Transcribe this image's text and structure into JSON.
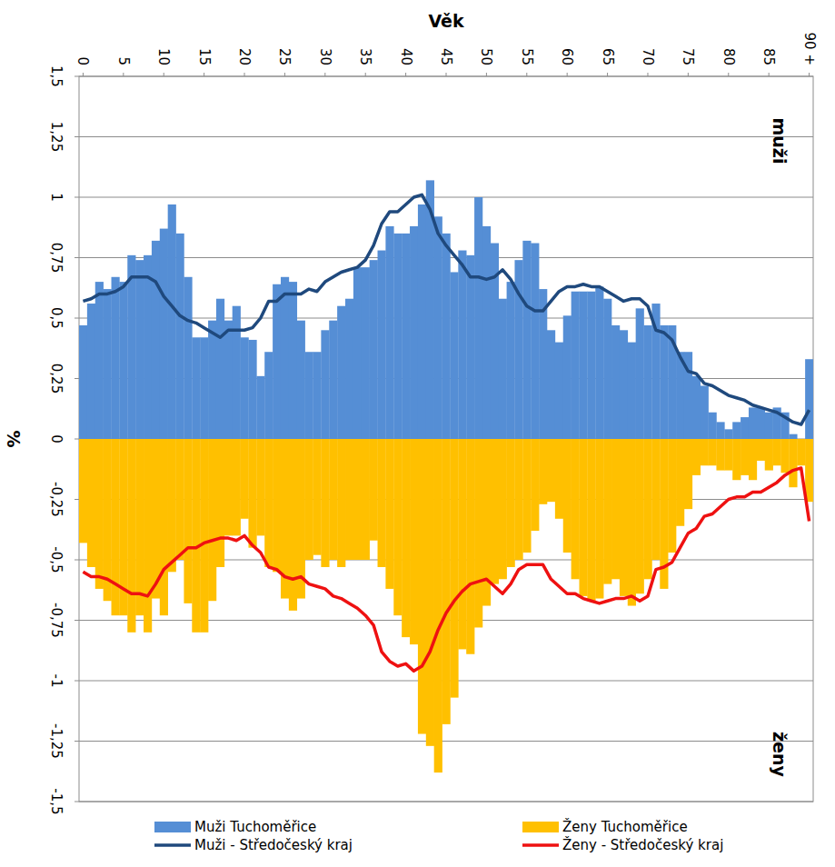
{
  "chart_data": {
    "type": "bar",
    "x_label": "Věk",
    "y_label": "%",
    "annotations": [
      "muži",
      "ženy"
    ],
    "categories": [
      "0",
      null,
      null,
      null,
      null,
      "5",
      null,
      null,
      null,
      null,
      "10",
      null,
      null,
      null,
      null,
      "15",
      null,
      null,
      null,
      null,
      "20",
      null,
      null,
      null,
      null,
      "25",
      null,
      null,
      null,
      null,
      "30",
      null,
      null,
      null,
      null,
      "35",
      null,
      null,
      null,
      null,
      "40",
      null,
      null,
      null,
      null,
      "45",
      null,
      null,
      null,
      null,
      "50",
      null,
      null,
      null,
      null,
      "55",
      null,
      null,
      null,
      null,
      "60",
      null,
      null,
      null,
      null,
      "65",
      null,
      null,
      null,
      null,
      "70",
      null,
      null,
      null,
      null,
      "75",
      null,
      null,
      null,
      null,
      "80",
      null,
      null,
      null,
      null,
      "85",
      null,
      null,
      null,
      null,
      "90 +"
    ],
    "ylim": [
      -1.5,
      1.5
    ],
    "yticks": [
      {
        "value": -1.5,
        "label": "-1,5"
      },
      {
        "value": -1.25,
        "label": "-1,25"
      },
      -1,
      {
        "value": -0.75,
        "label": "-0,75"
      },
      {
        "value": -0.5,
        "label": "-0,5"
      },
      {
        "value": -0.25,
        "label": "-0,25"
      },
      0,
      {
        "value": 0.25,
        "label": "0,25"
      },
      {
        "value": 0.5,
        "label": "0,5"
      },
      {
        "value": 0.75,
        "label": "0,75"
      },
      1,
      {
        "value": 1.25,
        "label": "1,25"
      },
      {
        "value": 1.5,
        "label": "1,5"
      }
    ],
    "grid": true,
    "legend": "bottom",
    "series": [
      {
        "name": "Muži Tuchoměřice",
        "type": "bar",
        "color": "#558ed5",
        "values": [
          0.47,
          0.56,
          0.65,
          0.62,
          0.67,
          0.65,
          0.76,
          0.74,
          0.76,
          0.82,
          0.87,
          0.97,
          0.85,
          0.67,
          0.42,
          0.42,
          0.49,
          0.58,
          0.49,
          0.55,
          0.42,
          0.41,
          0.26,
          0.36,
          0.64,
          0.67,
          0.65,
          0.49,
          0.36,
          0.36,
          0.45,
          0.49,
          0.55,
          0.58,
          0.71,
          0.71,
          0.74,
          0.78,
          0.88,
          0.85,
          0.85,
          0.88,
          0.97,
          1.07,
          0.92,
          0.85,
          0.69,
          0.78,
          0.76,
          1.0,
          0.88,
          0.81,
          0.58,
          0.65,
          0.74,
          0.82,
          0.81,
          0.62,
          0.45,
          0.4,
          0.51,
          0.61,
          0.61,
          0.61,
          0.63,
          0.58,
          0.47,
          0.45,
          0.4,
          0.54,
          0.47,
          0.56,
          0.47,
          0.47,
          0.36,
          0.36,
          0.26,
          0.22,
          0.11,
          0.07,
          0.04,
          0.07,
          0.09,
          0.13,
          0.13,
          0.11,
          0.13,
          0.11,
          0.02,
          0.0,
          0.33
        ]
      },
      {
        "name": "Ženy Tuchoměřice",
        "type": "bar",
        "color": "#ffc000",
        "values": [
          -0.43,
          -0.53,
          -0.62,
          -0.67,
          -0.73,
          -0.73,
          -0.8,
          -0.73,
          -0.8,
          -0.66,
          -0.73,
          -0.55,
          -0.5,
          -0.68,
          -0.8,
          -0.8,
          -0.67,
          -0.53,
          -0.4,
          -0.4,
          -0.33,
          -0.45,
          -0.4,
          -0.53,
          -0.55,
          -0.66,
          -0.71,
          -0.66,
          -0.5,
          -0.48,
          -0.53,
          -0.5,
          -0.53,
          -0.5,
          -0.5,
          -0.5,
          -0.42,
          -0.53,
          -0.62,
          -0.73,
          -0.82,
          -0.85,
          -1.22,
          -1.27,
          -1.38,
          -1.18,
          -1.07,
          -0.87,
          -0.89,
          -0.78,
          -0.69,
          -0.6,
          -0.58,
          -0.53,
          -0.5,
          -0.47,
          -0.38,
          -0.27,
          -0.26,
          -0.33,
          -0.47,
          -0.58,
          -0.65,
          -0.67,
          -0.66,
          -0.6,
          -0.58,
          -0.65,
          -0.69,
          -0.64,
          -0.58,
          -0.5,
          -0.62,
          -0.47,
          -0.36,
          -0.29,
          -0.15,
          -0.11,
          -0.11,
          -0.13,
          -0.13,
          -0.17,
          -0.15,
          -0.17,
          -0.09,
          -0.13,
          -0.11,
          -0.14,
          -0.2,
          -0.11,
          -0.26
        ]
      },
      {
        "name": "Muži - Středočeský kraj",
        "type": "line",
        "color": "#1f497d",
        "values": [
          0.57,
          0.58,
          0.6,
          0.6,
          0.61,
          0.63,
          0.67,
          0.67,
          0.67,
          0.65,
          0.59,
          0.55,
          0.51,
          0.49,
          0.48,
          0.46,
          0.44,
          0.42,
          0.45,
          0.45,
          0.45,
          0.46,
          0.5,
          0.57,
          0.57,
          0.6,
          0.6,
          0.6,
          0.62,
          0.61,
          0.65,
          0.67,
          0.69,
          0.7,
          0.71,
          0.74,
          0.8,
          0.89,
          0.94,
          0.94,
          0.97,
          1.0,
          1.01,
          0.95,
          0.85,
          0.8,
          0.76,
          0.72,
          0.67,
          0.67,
          0.66,
          0.67,
          0.7,
          0.66,
          0.6,
          0.55,
          0.53,
          0.53,
          0.57,
          0.61,
          0.63,
          0.63,
          0.64,
          0.63,
          0.63,
          0.61,
          0.59,
          0.57,
          0.58,
          0.58,
          0.55,
          0.45,
          0.44,
          0.41,
          0.34,
          0.28,
          0.27,
          0.23,
          0.22,
          0.2,
          0.18,
          0.17,
          0.16,
          0.14,
          0.13,
          0.12,
          0.11,
          0.09,
          0.07,
          0.06,
          0.12
        ]
      },
      {
        "name": "Ženy - Středočeský kraj",
        "type": "line",
        "color": "#ee1111",
        "values": [
          -0.55,
          -0.57,
          -0.57,
          -0.58,
          -0.6,
          -0.62,
          -0.64,
          -0.64,
          -0.65,
          -0.6,
          -0.54,
          -0.51,
          -0.48,
          -0.45,
          -0.45,
          -0.43,
          -0.42,
          -0.41,
          -0.41,
          -0.42,
          -0.4,
          -0.44,
          -0.47,
          -0.53,
          -0.54,
          -0.57,
          -0.58,
          -0.57,
          -0.6,
          -0.61,
          -0.62,
          -0.65,
          -0.66,
          -0.68,
          -0.7,
          -0.73,
          -0.77,
          -0.88,
          -0.92,
          -0.94,
          -0.93,
          -0.96,
          -0.94,
          -0.88,
          -0.79,
          -0.72,
          -0.67,
          -0.63,
          -0.6,
          -0.59,
          -0.58,
          -0.61,
          -0.64,
          -0.6,
          -0.54,
          -0.52,
          -0.52,
          -0.52,
          -0.58,
          -0.61,
          -0.64,
          -0.64,
          -0.66,
          -0.67,
          -0.68,
          -0.67,
          -0.66,
          -0.66,
          -0.65,
          -0.67,
          -0.65,
          -0.54,
          -0.53,
          -0.51,
          -0.45,
          -0.39,
          -0.37,
          -0.32,
          -0.31,
          -0.28,
          -0.25,
          -0.24,
          -0.24,
          -0.22,
          -0.22,
          -0.2,
          -0.18,
          -0.15,
          -0.13,
          -0.12,
          -0.34
        ]
      }
    ]
  }
}
